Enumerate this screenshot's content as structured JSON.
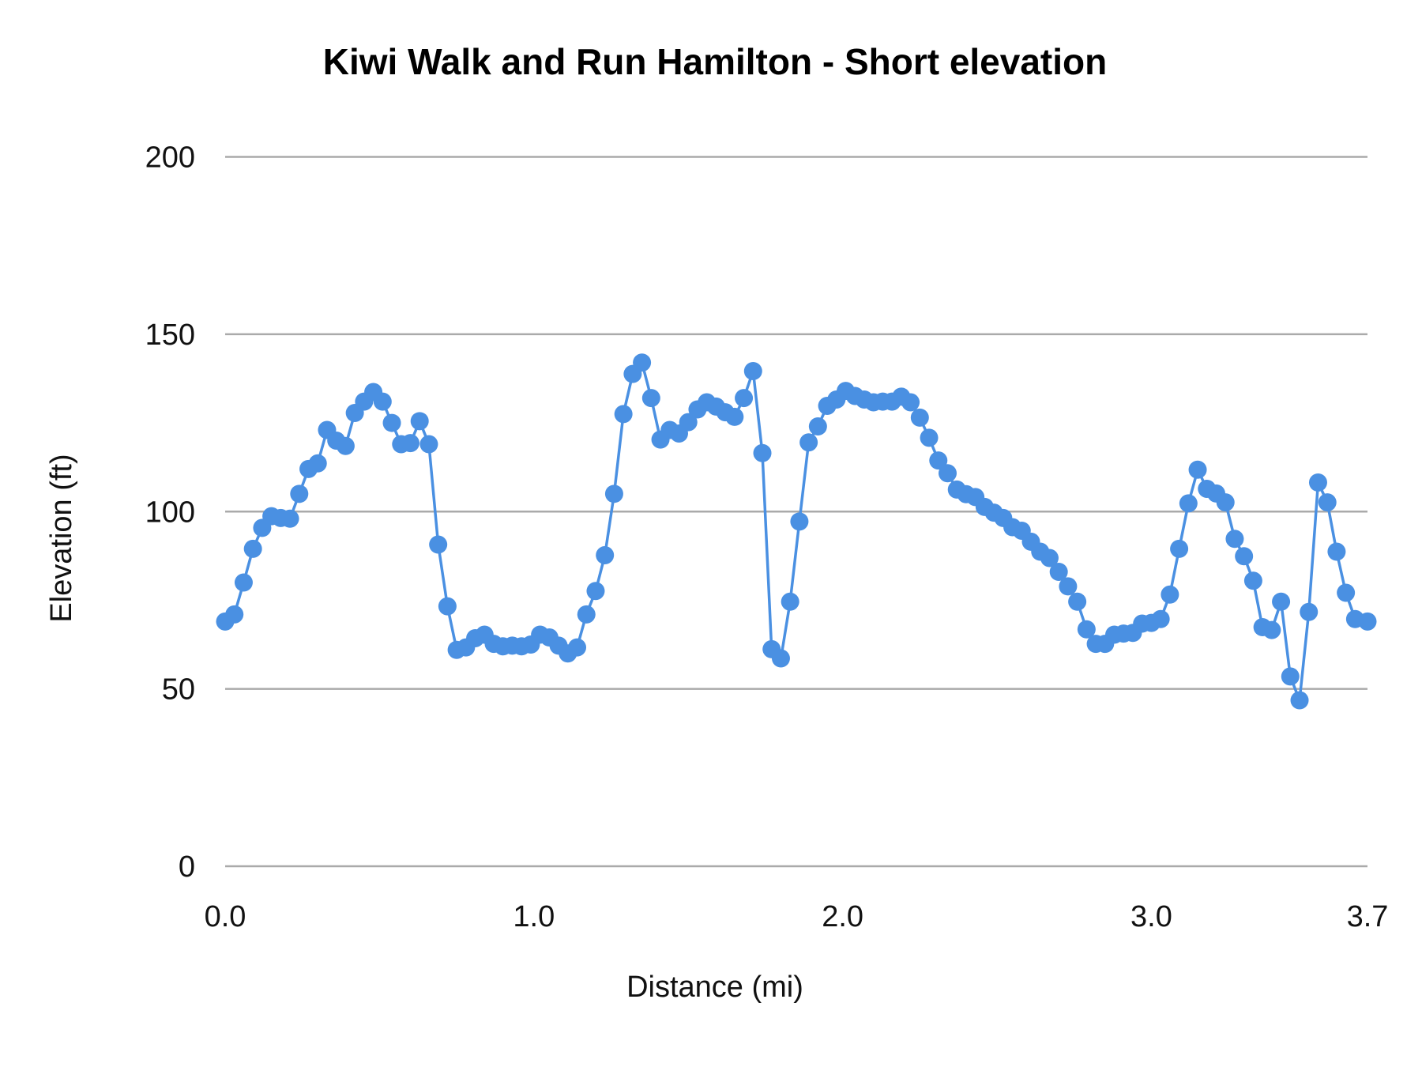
{
  "chart_data": {
    "type": "line",
    "title": "Kiwi Walk and Run Hamilton - Short elevation",
    "xlabel": "Distance (mi)",
    "ylabel": "Elevation (ft)",
    "xlim": [
      0,
      3.7
    ],
    "ylim": [
      0,
      200
    ],
    "x_ticks": [
      "0.0",
      "1.0",
      "2.0",
      "3.0",
      "3.7"
    ],
    "x_tick_values": [
      0,
      1,
      2,
      3,
      3.7
    ],
    "y_ticks": [
      "0",
      "50",
      "100",
      "150",
      "200"
    ],
    "y_tick_values": [
      0,
      50,
      100,
      150,
      200
    ],
    "grid": "horizontal",
    "markers": true,
    "color": "#4a90e2",
    "grid_color": "#aaaaaa",
    "x": [
      0,
      0.03,
      0.06,
      0.09,
      0.12,
      0.15,
      0.18,
      0.21,
      0.24,
      0.27,
      0.3,
      0.33,
      0.36,
      0.39,
      0.42,
      0.45,
      0.48,
      0.51,
      0.54,
      0.57,
      0.6,
      0.63,
      0.66,
      0.69,
      0.72,
      0.75,
      0.78,
      0.81,
      0.84,
      0.87,
      0.9,
      0.93,
      0.96,
      0.99,
      1.02,
      1.05,
      1.08,
      1.11,
      1.14,
      1.17,
      1.2,
      1.23,
      1.26,
      1.29,
      1.32,
      1.35,
      1.38,
      1.41,
      1.44,
      1.47,
      1.5,
      1.53,
      1.56,
      1.59,
      1.62,
      1.65,
      1.68,
      1.71,
      1.74,
      1.77,
      1.8,
      1.83,
      1.86,
      1.89,
      1.92,
      1.95,
      1.98,
      2.01,
      2.04,
      2.07,
      2.1,
      2.13,
      2.16,
      2.19,
      2.22,
      2.25,
      2.28,
      2.31,
      2.34,
      2.37,
      2.4,
      2.43,
      2.46,
      2.49,
      2.52,
      2.55,
      2.58,
      2.61,
      2.64,
      2.67,
      2.7,
      2.73,
      2.76,
      2.79,
      2.82,
      2.85,
      2.88,
      2.91,
      2.94,
      2.97,
      3.0,
      3.03,
      3.06,
      3.09,
      3.12,
      3.15,
      3.18,
      3.21,
      3.24,
      3.27,
      3.3,
      3.33,
      3.36,
      3.39,
      3.42,
      3.45,
      3.48,
      3.51,
      3.54,
      3.57,
      3.6,
      3.63,
      3.66,
      3.7
    ],
    "y": [
      69,
      71,
      80,
      89.5,
      95.4,
      98.7,
      98.2,
      98,
      105,
      112,
      113.6,
      123,
      120,
      118.5,
      127.8,
      131,
      133.7,
      131,
      125,
      119,
      119.3,
      125.5,
      119,
      90.7,
      73.3,
      61,
      61.7,
      64.3,
      65.3,
      62.7,
      62,
      62.2,
      62,
      62.5,
      65.3,
      64.5,
      62.2,
      60,
      61.7,
      71,
      77.6,
      87.7,
      105,
      127.5,
      138.8,
      142,
      132,
      120.3,
      123,
      122,
      125.2,
      128.8,
      130.8,
      129.6,
      128,
      126.7,
      132,
      139.6,
      116.5,
      61.2,
      58.6,
      74.6,
      97.2,
      119.5,
      124,
      129.8,
      131.6,
      134,
      132.6,
      131.6,
      130.8,
      131,
      131,
      132.4,
      130.8,
      126.5,
      120.8,
      114.4,
      110.8,
      106.2,
      104.9,
      104.1,
      101.3,
      99.7,
      98.2,
      95.6,
      94.6,
      91.5,
      88.7,
      86.9,
      83,
      78.9,
      74.6,
      66.8,
      62.7,
      62.7,
      65.3,
      65.6,
      65.8,
      68.4,
      68.6,
      69.7,
      76.6,
      89.5,
      102.3,
      111.8,
      106.4,
      105.1,
      102.6,
      92.3,
      87.4,
      80.5,
      67.4,
      66.6,
      74.6,
      53.5,
      46.8,
      71.7,
      108.2,
      102.6,
      88.7,
      77.1,
      69.7,
      69
    ]
  }
}
